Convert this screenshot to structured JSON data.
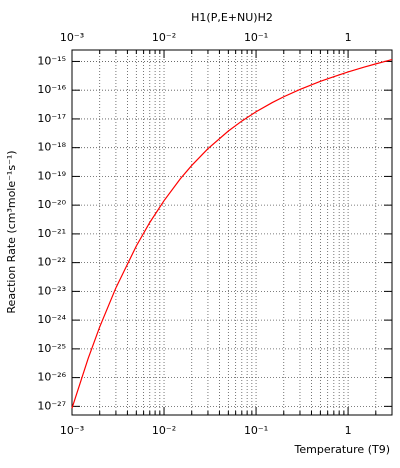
{
  "chart_data": {
    "type": "line",
    "title": "H1(P,E+NU)H2",
    "xlabel": "Temperature (T9)",
    "ylabel": "Reaction Rate (cm³mole⁻¹s⁻¹)",
    "xscale": "log",
    "yscale": "log",
    "grid": true,
    "color": "#ff0000",
    "x": [
      0.001,
      0.0015,
      0.002,
      0.003,
      0.005,
      0.007,
      0.01,
      0.015,
      0.02,
      0.03,
      0.05,
      0.07,
      0.1,
      0.15,
      0.2,
      0.3,
      0.5,
      0.7,
      1,
      1.5,
      2,
      3
    ],
    "values": [
      8.6e-28,
      4.7e-26,
      5.8e-25,
      1.33e-23,
      3.79e-22,
      2.49e-21,
      1.43e-20,
      8.18e-20,
      2.41e-19,
      9.19e-19,
      3.8e-18,
      8.42e-18,
      1.775e-17,
      3.71e-17,
      5.91e-17,
      1.063e-16,
      2.03e-16,
      2.96e-16,
      4.3e-16,
      6.35e-16,
      8.23e-16,
      1.16e-15
    ],
    "xlim": [
      0.001,
      3
    ],
    "ylim": [
      5e-28,
      2.5e-15
    ],
    "xticks": [
      {
        "value": 0.001,
        "label": "10⁻³"
      },
      {
        "value": 0.01,
        "label": "10⁻²"
      },
      {
        "value": 0.1,
        "label": "10⁻¹"
      },
      1
    ],
    "xminorticks": [
      0.002,
      0.003,
      0.004,
      0.005,
      0.006,
      0.007,
      0.008,
      0.009,
      0.02,
      0.03,
      0.04,
      0.05,
      0.06,
      0.07,
      0.08,
      0.09,
      0.2,
      0.3,
      0.4,
      0.5,
      0.6,
      0.7,
      0.8,
      0.9,
      2,
      3
    ],
    "yticks": [
      {
        "value": 1e-27,
        "label": "10⁻²⁷"
      },
      {
        "value": 1e-26,
        "label": "10⁻²⁶"
      },
      {
        "value": 1e-25,
        "label": "10⁻²⁵"
      },
      {
        "value": 1e-24,
        "label": "10⁻²⁴"
      },
      {
        "value": 1e-23,
        "label": "10⁻²³"
      },
      {
        "value": 1e-22,
        "label": "10⁻²²"
      },
      {
        "value": 1e-21,
        "label": "10⁻²¹"
      },
      {
        "value": 1e-20,
        "label": "10⁻²⁰"
      },
      {
        "value": 1e-19,
        "label": "10⁻¹⁹"
      },
      {
        "value": 1e-18,
        "label": "10⁻¹⁸"
      },
      {
        "value": 1e-17,
        "label": "10⁻¹⁷"
      },
      {
        "value": 1e-16,
        "label": "10⁻¹⁶"
      },
      {
        "value": 1e-15,
        "label": "10⁻¹⁵"
      }
    ]
  }
}
